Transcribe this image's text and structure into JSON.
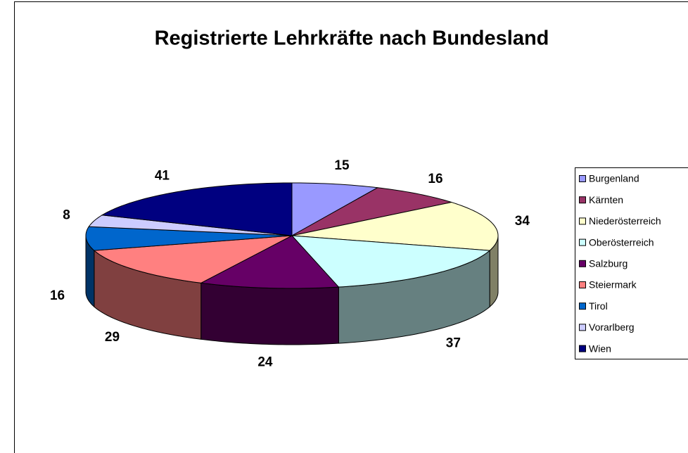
{
  "chart_data": {
    "type": "pie3d",
    "title": "Registrierte Lehrkräfte nach Bundesland",
    "categories": [
      "Burgenland",
      "Kärnten",
      "Niederösterreich",
      "Oberösterreich",
      "Salzburg",
      "Steiermark",
      "Tirol",
      "Vorarlberg",
      "Wien"
    ],
    "values": [
      15,
      16,
      34,
      37,
      24,
      29,
      16,
      8,
      41
    ],
    "colors": [
      "#9999ff",
      "#993366",
      "#ffffcc",
      "#ccffff",
      "#660066",
      "#ff8080",
      "#0066cc",
      "#ccccff",
      "#000080"
    ],
    "legend": "right"
  }
}
